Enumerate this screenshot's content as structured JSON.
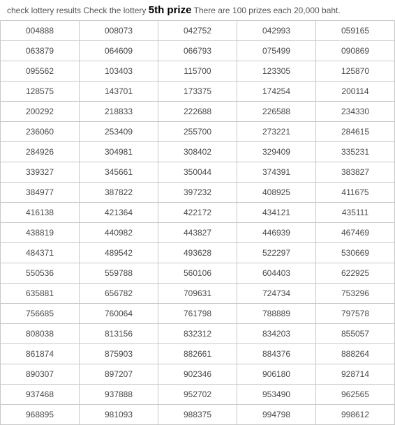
{
  "header": {
    "prefix": "check lottery results Check the lottery",
    "prize_label": "5th prize",
    "suffix": "There are 100 prizes each 20,000 baht."
  },
  "table": {
    "columns": 5,
    "rows": [
      [
        "004888",
        "008073",
        "042752",
        "042993",
        "059165"
      ],
      [
        "063879",
        "064609",
        "066793",
        "075499",
        "090869"
      ],
      [
        "095562",
        "103403",
        "115700",
        "123305",
        "125870"
      ],
      [
        "128575",
        "143701",
        "173375",
        "174254",
        "200114"
      ],
      [
        "200292",
        "218833",
        "222688",
        "226588",
        "234330"
      ],
      [
        "236060",
        "253409",
        "255700",
        "273221",
        "284615"
      ],
      [
        "284926",
        "304981",
        "308402",
        "329409",
        "335231"
      ],
      [
        "339327",
        "345661",
        "350044",
        "374391",
        "383827"
      ],
      [
        "384977",
        "387822",
        "397232",
        "408925",
        "411675"
      ],
      [
        "416138",
        "421364",
        "422172",
        "434121",
        "435111"
      ],
      [
        "438819",
        "440982",
        "443827",
        "446939",
        "467469"
      ],
      [
        "484371",
        "489542",
        "493628",
        "522297",
        "530669"
      ],
      [
        "550536",
        "559788",
        "560106",
        "604403",
        "622925"
      ],
      [
        "635881",
        "656782",
        "709631",
        "724734",
        "753296"
      ],
      [
        "756685",
        "760064",
        "761798",
        "788889",
        "797578"
      ],
      [
        "808038",
        "813156",
        "832312",
        "834203",
        "855057"
      ],
      [
        "861874",
        "875903",
        "882661",
        "884376",
        "888264"
      ],
      [
        "890307",
        "897207",
        "902346",
        "906180",
        "928714"
      ],
      [
        "937468",
        "937888",
        "952702",
        "953490",
        "962565"
      ],
      [
        "968895",
        "981093",
        "988375",
        "994798",
        "998612"
      ]
    ]
  },
  "style": {
    "cell_font_size": 12,
    "cell_text_color": "#4a4a4a",
    "border_color": "#c8c8c8",
    "background_color": "#ffffff",
    "header_text_color": "#555555",
    "prize_font_size": 15,
    "prize_font_weight": "bold"
  }
}
